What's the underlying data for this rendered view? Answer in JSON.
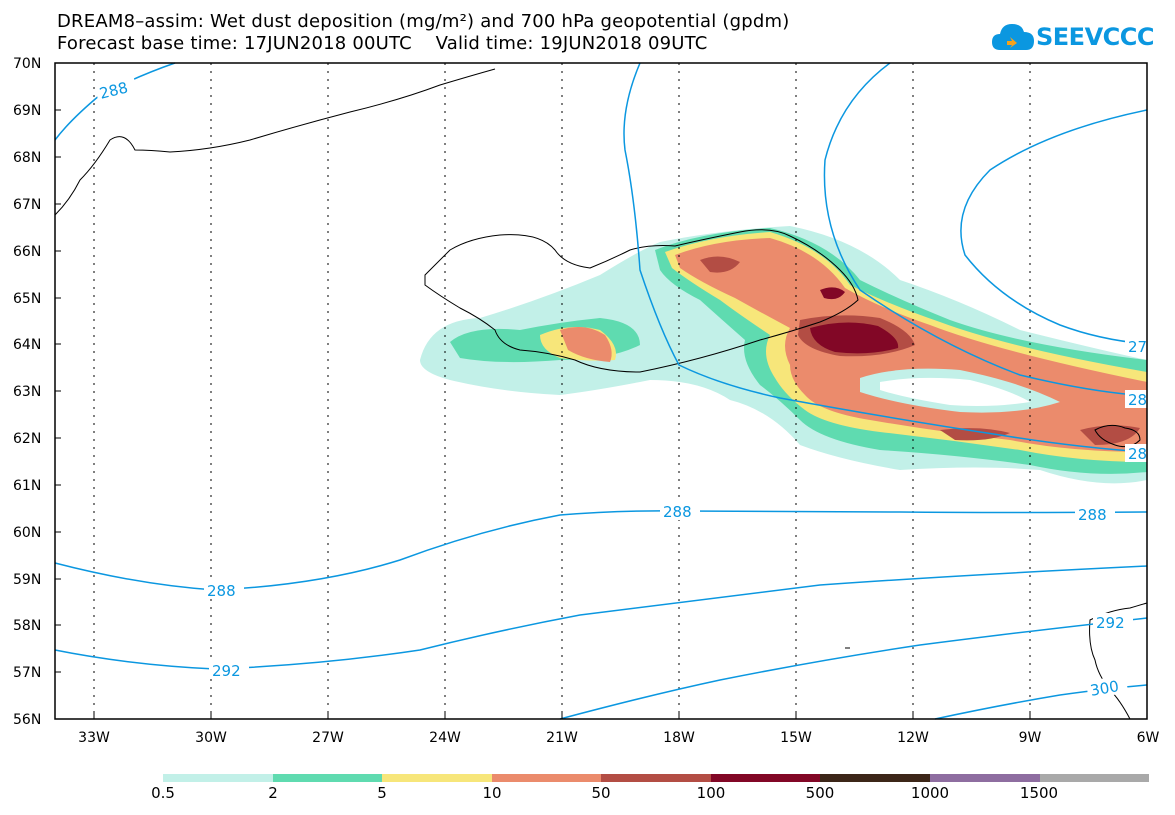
{
  "title": {
    "line1": "DREAM8–assim: Wet dust deposition (mg/m²) and 700 hPa geopotential (gpdm)",
    "line2": "Forecast base time: 17JUN2018 00UTC    Valid time: 19JUN2018 09UTC"
  },
  "logo": {
    "text": "SEEVCCC"
  },
  "axes": {
    "lat_labels": [
      "70N",
      "69N",
      "68N",
      "67N",
      "66N",
      "65N",
      "64N",
      "63N",
      "62N",
      "61N",
      "60N",
      "59N",
      "58N",
      "57N",
      "56N"
    ],
    "lon_labels": [
      "33W",
      "30W",
      "27W",
      "24W",
      "21W",
      "18W",
      "15W",
      "12W",
      "9W",
      "6W"
    ]
  },
  "contours": {
    "labels": [
      "288",
      "288",
      "288",
      "288",
      "292",
      "292",
      "300",
      "27",
      "28",
      "28"
    ]
  },
  "legend": {
    "colors": [
      "#c2f0e8",
      "#5fdbb0",
      "#f7e67a",
      "#eb8b6c",
      "#b34d44",
      "#820726",
      "#3c2618",
      "#8e6da0",
      "#a9a9a9"
    ],
    "labels": [
      "0.5",
      "2",
      "5",
      "10",
      "50",
      "100",
      "500",
      "1000",
      "1500"
    ]
  }
}
